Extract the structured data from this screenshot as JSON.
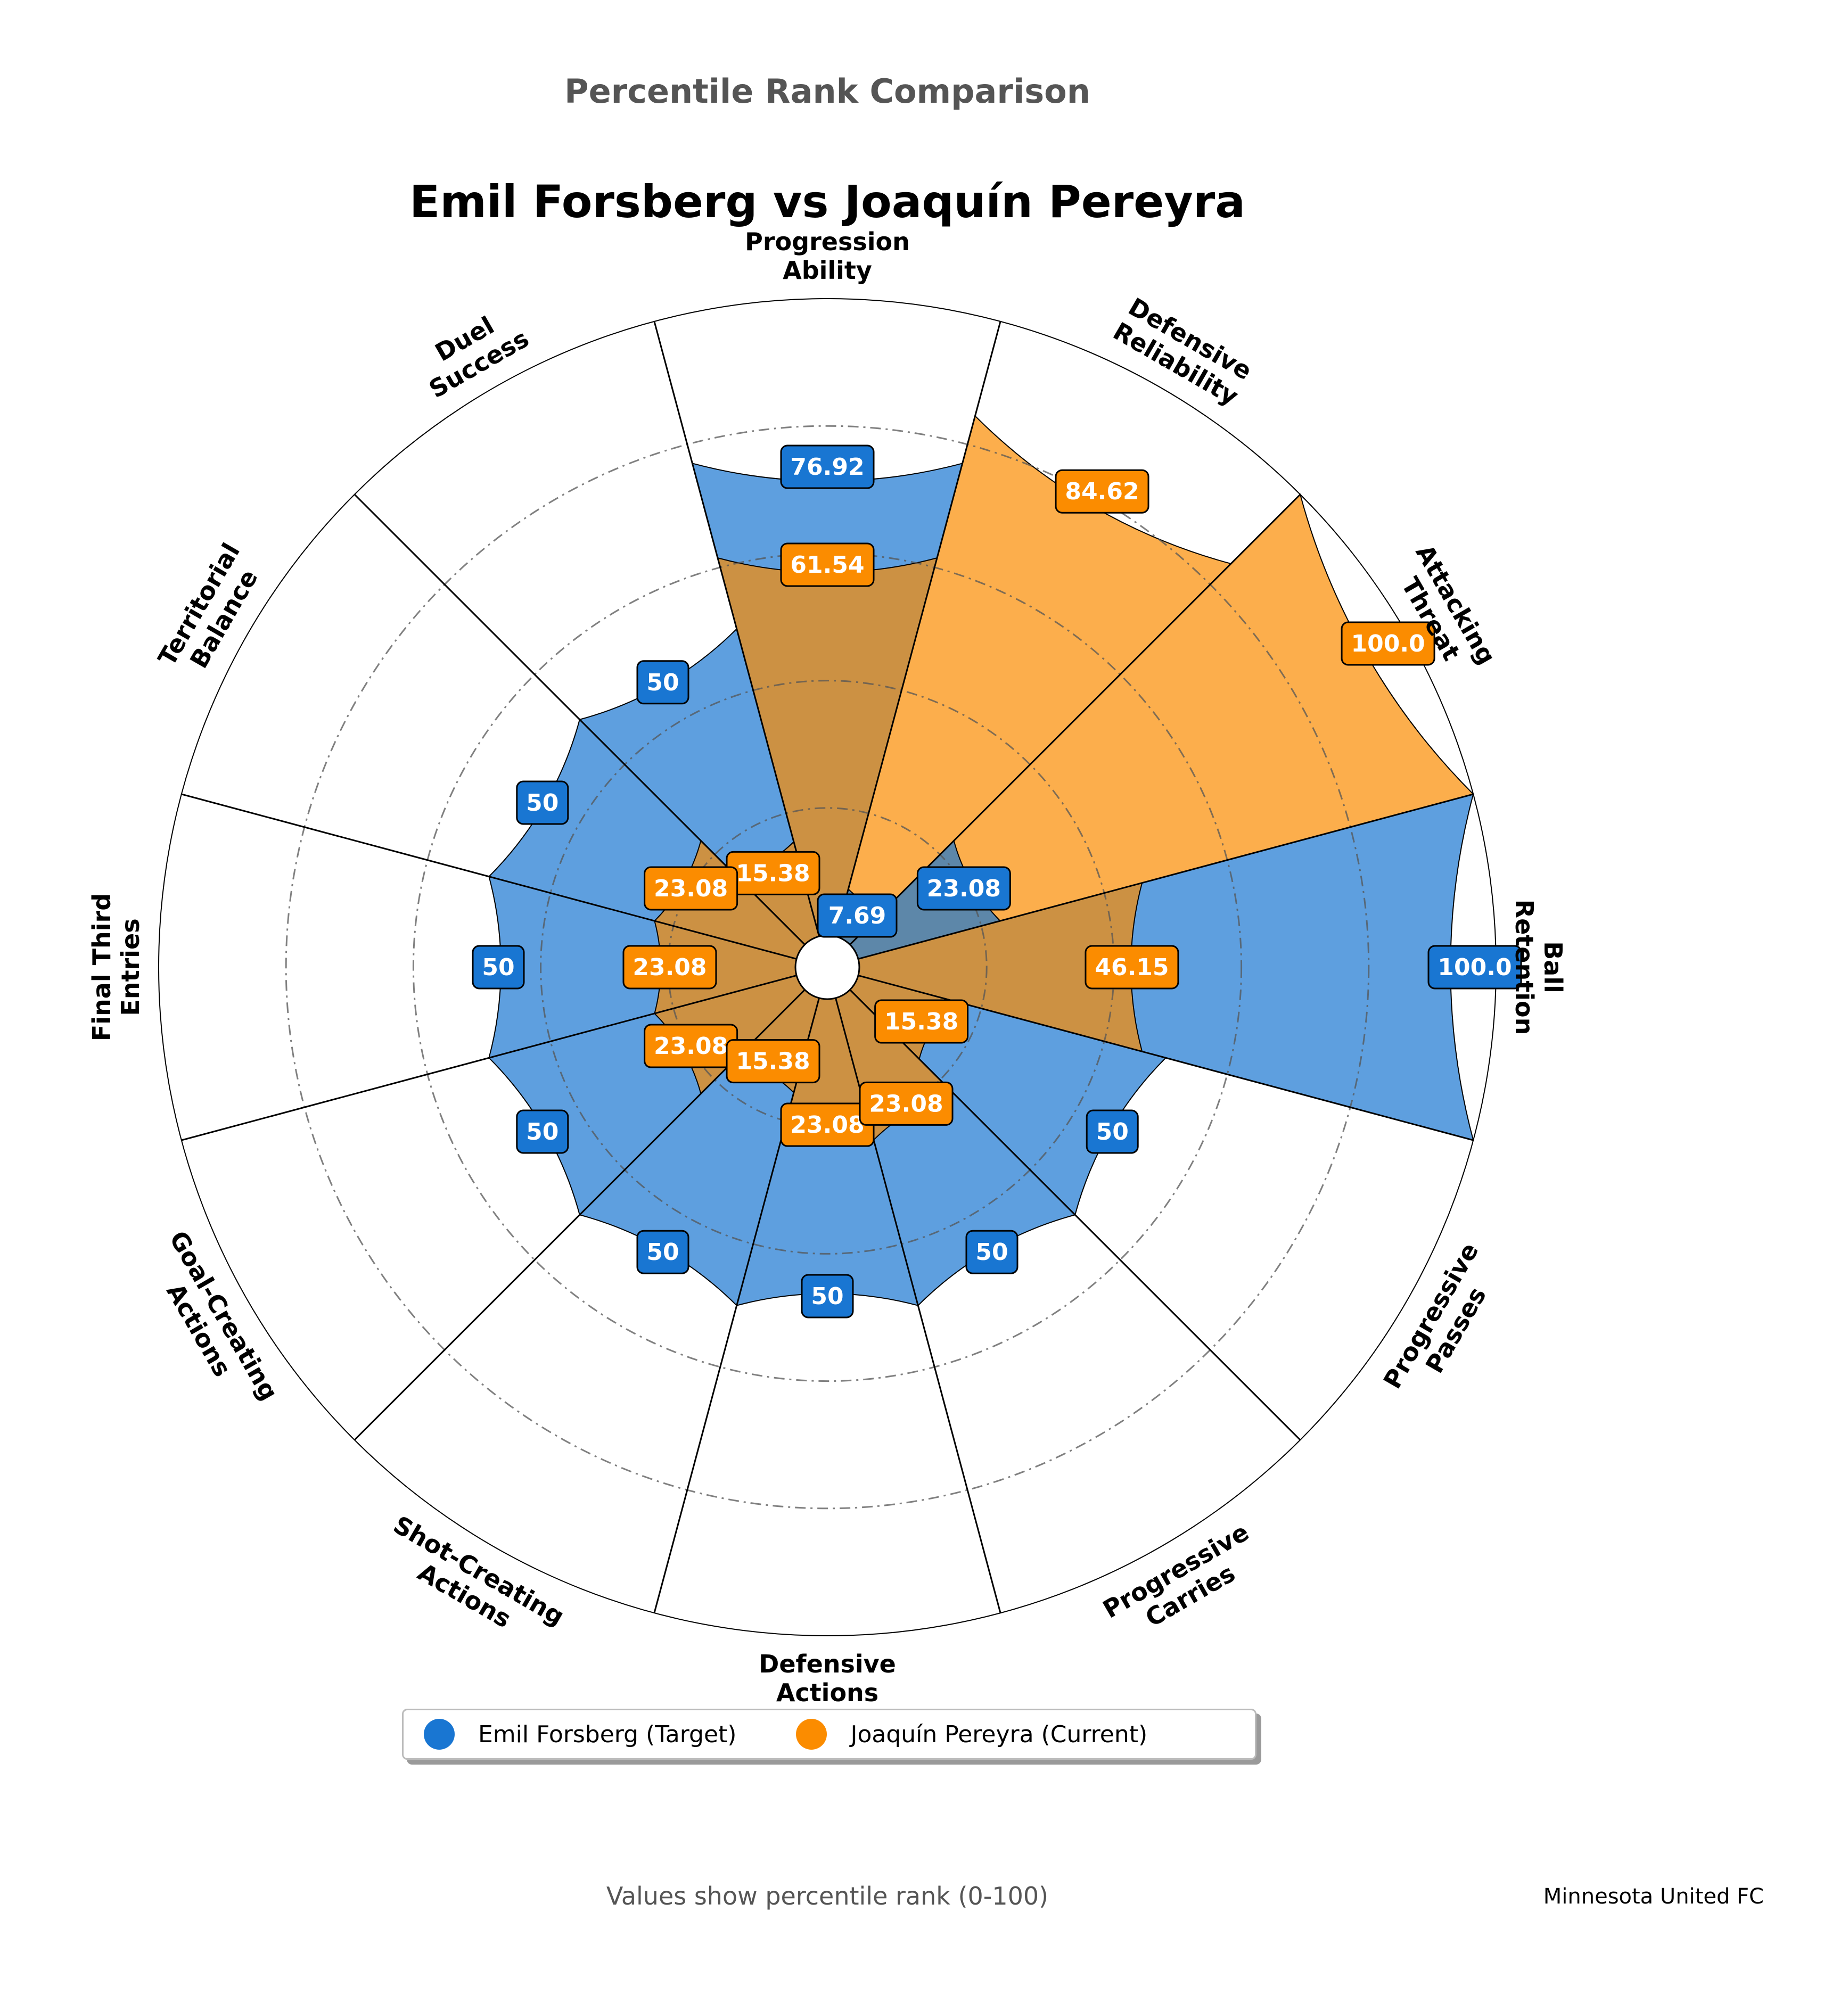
{
  "supertitle": "Percentile Rank Comparison",
  "footer_note": "Values show percentile rank (0-100)",
  "team_label": "Minnesota United FC",
  "colors": {
    "target": "#1976D2",
    "current": "#FB8C00"
  },
  "legend": {
    "target_label": "Emil Forsberg (Target)",
    "current_label": "Joaquín Pereyra (Current)"
  },
  "chart_data": {
    "type": "polar-bar",
    "title": "Emil Forsberg vs Joaquín Pereyra",
    "rlim": [
      0,
      100
    ],
    "grid": true,
    "legend_position": "bottom-center",
    "categories": [
      "Ball\nRetention",
      "Attacking\nThreat",
      "Defensive\nReliability",
      "Progression\nAbility",
      "Duel\nSuccess",
      "Territorial\nBalance",
      "Final Third\nEntries",
      "Goal-Creating\nActions",
      "Shot-Creating\nActions",
      "Defensive\nActions",
      "Progressive\nCarries",
      "Progressive\nPasses"
    ],
    "series": [
      {
        "name": "Emil Forsberg (Target)",
        "values": [
          100.0,
          23.08,
          7.69,
          76.92,
          50,
          50,
          50,
          50,
          50,
          50,
          50,
          50
        ]
      },
      {
        "name": "Joaquín Pereyra (Current)",
        "values": [
          46.15,
          100.0,
          84.62,
          61.54,
          15.38,
          23.08,
          23.08,
          23.08,
          15.38,
          23.08,
          23.08,
          15.38
        ]
      }
    ],
    "value_labels": {
      "target": [
        "100.0",
        "23.08",
        "7.69",
        "76.92",
        "50",
        "50",
        "50",
        "50",
        "50",
        "50",
        "50",
        "50"
      ],
      "current": [
        "46.15",
        "100.0",
        "84.62",
        "61.54",
        "15.38",
        "23.08",
        "23.08",
        "23.08",
        "15.38",
        "23.08",
        "23.08",
        "15.38"
      ]
    }
  }
}
